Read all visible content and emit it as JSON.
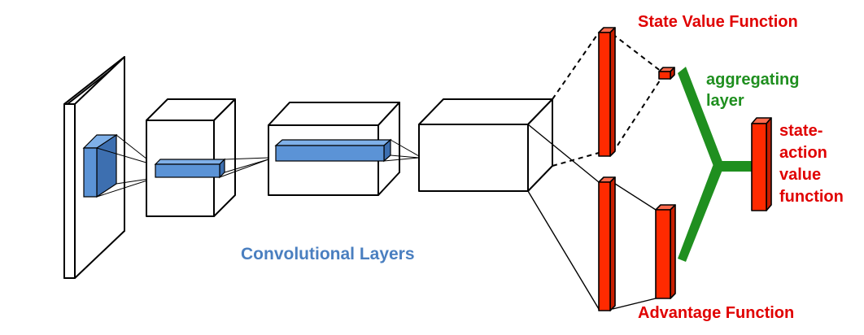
{
  "labels": {
    "state_value": "State Value Function",
    "advantage": "Advantage Function",
    "aggregating_line1": "aggregating",
    "aggregating_line2": "layer",
    "q_line1": "state-",
    "q_line2": "action",
    "q_line3": "value",
    "q_line4": "function",
    "conv": "Convolutional Layers"
  },
  "colors": {
    "red_block": "#ff2a00",
    "red_text": "#e00000",
    "green": "#1f8f1f",
    "blue_block": "#5b93d6",
    "blue_text": "#4a7fc0"
  }
}
